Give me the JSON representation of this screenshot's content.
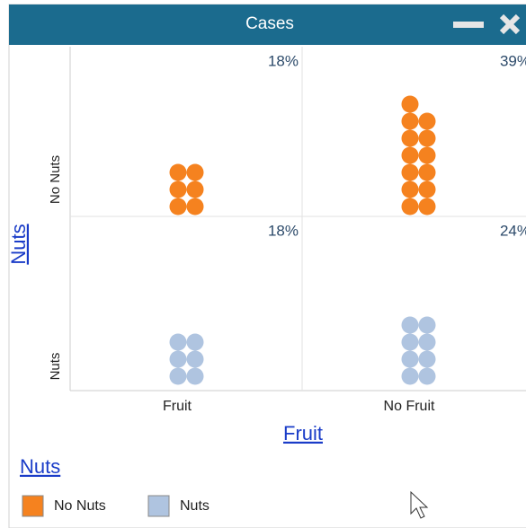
{
  "window": {
    "title": "Cases"
  },
  "plot": {
    "y_axis": {
      "title": "Nuts",
      "categories": [
        "No Nuts",
        "Nuts"
      ]
    },
    "x_axis": {
      "title": "Fruit",
      "categories": [
        "Fruit",
        "No Fruit"
      ]
    },
    "cells": [
      [
        {
          "percent": "18%",
          "count": 6
        },
        {
          "percent": "39%",
          "count": 13
        }
      ],
      [
        {
          "percent": "18%",
          "count": 6
        },
        {
          "percent": "24%",
          "count": 8
        }
      ]
    ]
  },
  "legend": {
    "title": "Nuts",
    "items": [
      {
        "label": "No Nuts",
        "color": "#f5821f"
      },
      {
        "label": "Nuts",
        "color": "#afc4e0"
      }
    ]
  }
}
